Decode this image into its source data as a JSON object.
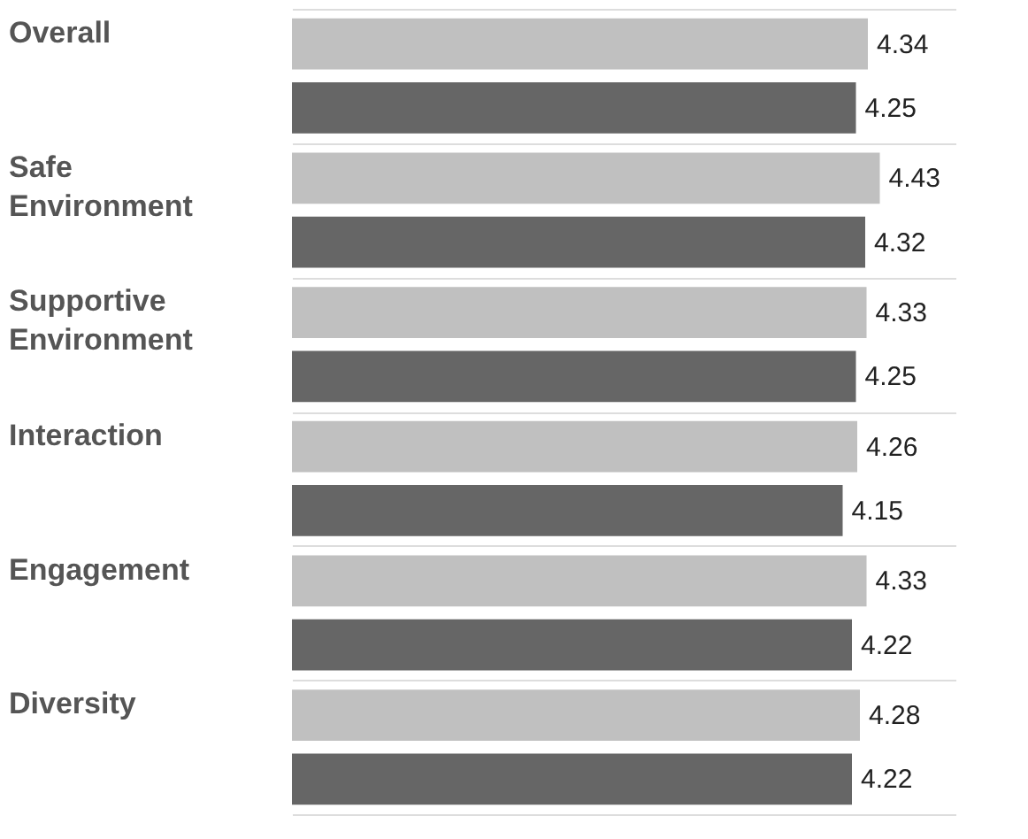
{
  "chart_data": {
    "type": "bar",
    "orientation": "horizontal",
    "categories": [
      "Overall",
      "Safe Environment",
      "Supportive Environment",
      "Interaction",
      "Engagement",
      "Diversity"
    ],
    "series": [
      {
        "color": "#c0c0c0",
        "values": [
          4.34,
          4.43,
          4.33,
          4.26,
          4.33,
          4.28
        ]
      },
      {
        "color": "#666666",
        "values": [
          4.25,
          4.32,
          4.25,
          4.15,
          4.22,
          4.22
        ]
      }
    ],
    "xlim": [
      0,
      5
    ],
    "data_labels": true,
    "grid": "y",
    "legend": false,
    "tick_labels": false
  }
}
